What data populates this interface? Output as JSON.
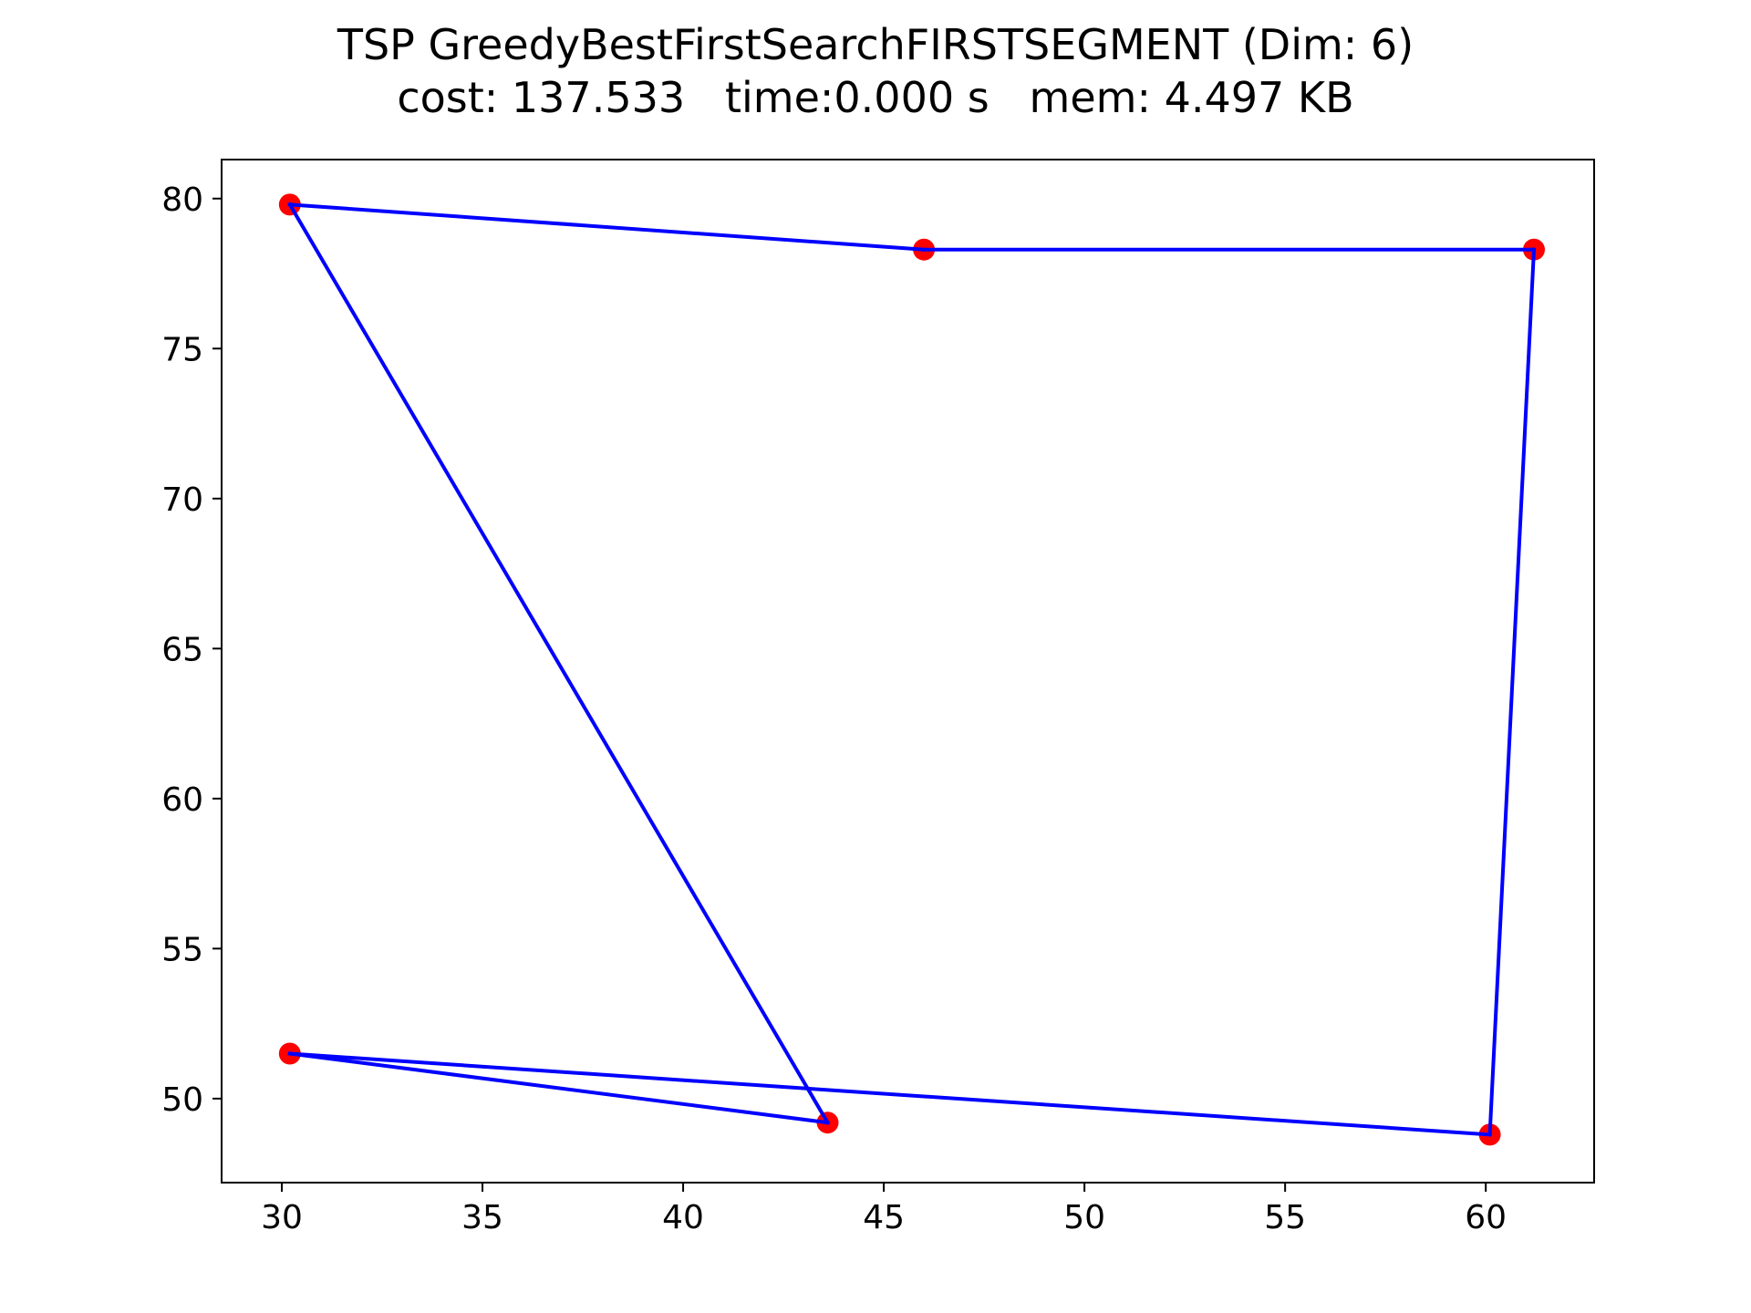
{
  "chart_data": {
    "type": "line",
    "title_line1": "TSP GreedyBestFirstSearchFIRSTSEGMENT (Dim: 6)",
    "title_line2": "cost: 137.533   time:0.000 s   mem: 4.497 KB",
    "xlabel": "",
    "ylabel": "",
    "xlim": [
      28.5,
      62.7
    ],
    "ylim": [
      47.2,
      81.3
    ],
    "xticks": [
      30,
      35,
      40,
      45,
      50,
      55,
      60
    ],
    "yticks": [
      50,
      55,
      60,
      65,
      70,
      75,
      80
    ],
    "grid": false,
    "point_color": "#ff0000",
    "line_color": "#0000ff",
    "points": [
      {
        "x": 30.2,
        "y": 79.8
      },
      {
        "x": 46.0,
        "y": 78.3
      },
      {
        "x": 61.2,
        "y": 78.3
      },
      {
        "x": 60.1,
        "y": 48.8
      },
      {
        "x": 30.2,
        "y": 51.5
      },
      {
        "x": 43.6,
        "y": 49.2
      }
    ],
    "tour": [
      {
        "x": 30.2,
        "y": 79.8
      },
      {
        "x": 46.0,
        "y": 78.3
      },
      {
        "x": 61.2,
        "y": 78.3
      },
      {
        "x": 60.1,
        "y": 48.8
      },
      {
        "x": 30.2,
        "y": 51.5
      },
      {
        "x": 43.6,
        "y": 49.2
      },
      {
        "x": 30.2,
        "y": 79.8
      }
    ]
  }
}
